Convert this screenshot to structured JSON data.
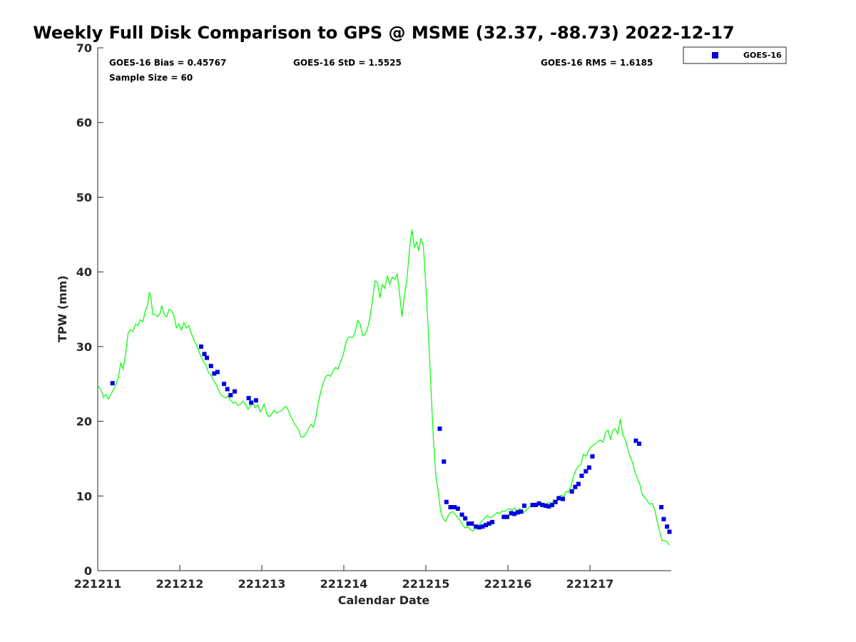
{
  "chart_data": {
    "type": "line",
    "title": "Weekly Full Disk Comparison to GPS @ MSME (32.37, -88.73) 2022-12-17",
    "xlabel": "Calendar Date",
    "ylabel": "TPW (mm)",
    "xlim": [
      0,
      7.0
    ],
    "ylim": [
      0,
      70
    ],
    "x_ticks": [
      {
        "value": 0,
        "label": "221211"
      },
      {
        "value": 1,
        "label": "221212"
      },
      {
        "value": 2,
        "label": "221213"
      },
      {
        "value": 3,
        "label": "221214"
      },
      {
        "value": 4,
        "label": "221215"
      },
      {
        "value": 5,
        "label": "221216"
      },
      {
        "value": 6,
        "label": "221217"
      }
    ],
    "y_ticks": [
      {
        "value": 0,
        "label": "0"
      },
      {
        "value": 10,
        "label": "10"
      },
      {
        "value": 20,
        "label": "20"
      },
      {
        "value": 30,
        "label": "30"
      },
      {
        "value": 40,
        "label": "40"
      },
      {
        "value": 50,
        "label": "50"
      },
      {
        "value": 60,
        "label": "60"
      },
      {
        "value": 70,
        "label": "70"
      }
    ],
    "stats": {
      "bias": "GOES-16 Bias = 0.45767",
      "std": "GOES-16 StD = 1.5525",
      "rms": "GOES-16 RMS = 1.6185",
      "sample": "Sample Size = 60"
    },
    "legend": {
      "position": "top-right",
      "entries": [
        "GOES-16"
      ]
    },
    "series": [
      {
        "name": "GPS",
        "kind": "line",
        "color": "#00ff00",
        "points": [
          [
            0.0,
            24.8
          ],
          [
            0.04,
            24.2
          ],
          [
            0.07,
            23.2
          ],
          [
            0.1,
            23.6
          ],
          [
            0.13,
            23.0
          ],
          [
            0.17,
            23.8
          ],
          [
            0.21,
            24.6
          ],
          [
            0.25,
            25.8
          ],
          [
            0.28,
            27.8
          ],
          [
            0.31,
            27.0
          ],
          [
            0.34,
            29.0
          ],
          [
            0.37,
            31.8
          ],
          [
            0.4,
            32.3
          ],
          [
            0.43,
            32.0
          ],
          [
            0.46,
            33.0
          ],
          [
            0.49,
            32.8
          ],
          [
            0.52,
            33.6
          ],
          [
            0.55,
            33.3
          ],
          [
            0.58,
            34.8
          ],
          [
            0.61,
            35.6
          ],
          [
            0.63,
            37.3
          ],
          [
            0.65,
            36.5
          ],
          [
            0.67,
            34.3
          ],
          [
            0.7,
            34.3
          ],
          [
            0.73,
            34.0
          ],
          [
            0.76,
            34.5
          ],
          [
            0.78,
            35.5
          ],
          [
            0.81,
            34.3
          ],
          [
            0.84,
            34.0
          ],
          [
            0.87,
            35.0
          ],
          [
            0.9,
            34.8
          ],
          [
            0.93,
            34.1
          ],
          [
            0.96,
            32.5
          ],
          [
            0.99,
            33.0
          ],
          [
            1.02,
            32.2
          ],
          [
            1.05,
            33.2
          ],
          [
            1.08,
            32.5
          ],
          [
            1.11,
            32.8
          ],
          [
            1.14,
            31.8
          ],
          [
            1.17,
            31.0
          ],
          [
            1.2,
            30.3
          ],
          [
            1.23,
            29.5
          ],
          [
            1.26,
            28.6
          ],
          [
            1.29,
            28.0
          ],
          [
            1.32,
            27.5
          ],
          [
            1.35,
            26.5
          ],
          [
            1.38,
            26.2
          ],
          [
            1.41,
            25.5
          ],
          [
            1.44,
            25.0
          ],
          [
            1.47,
            24.2
          ],
          [
            1.5,
            23.6
          ],
          [
            1.53,
            23.3
          ],
          [
            1.56,
            23.1
          ],
          [
            1.59,
            23.4
          ],
          [
            1.62,
            22.8
          ],
          [
            1.65,
            22.4
          ],
          [
            1.68,
            22.6
          ],
          [
            1.71,
            22.1
          ],
          [
            1.74,
            22.3
          ],
          [
            1.77,
            22.7
          ],
          [
            1.8,
            22.3
          ],
          [
            1.83,
            21.6
          ],
          [
            1.86,
            22.0
          ],
          [
            1.89,
            22.5
          ],
          [
            1.92,
            21.8
          ],
          [
            1.95,
            22.2
          ],
          [
            1.98,
            21.3
          ],
          [
            2.0,
            21.6
          ],
          [
            2.03,
            22.3
          ],
          [
            2.06,
            21.0
          ],
          [
            2.09,
            20.6
          ],
          [
            2.12,
            21.0
          ],
          [
            2.15,
            21.5
          ],
          [
            2.18,
            21.1
          ],
          [
            2.21,
            21.3
          ],
          [
            2.24,
            21.4
          ],
          [
            2.27,
            21.8
          ],
          [
            2.3,
            22.0
          ],
          [
            2.33,
            21.3
          ],
          [
            2.36,
            20.5
          ],
          [
            2.39,
            19.8
          ],
          [
            2.42,
            19.3
          ],
          [
            2.45,
            18.8
          ],
          [
            2.48,
            17.9
          ],
          [
            2.51,
            17.9
          ],
          [
            2.54,
            18.3
          ],
          [
            2.57,
            19.0
          ],
          [
            2.6,
            19.6
          ],
          [
            2.63,
            19.2
          ],
          [
            2.66,
            20.6
          ],
          [
            2.69,
            22.5
          ],
          [
            2.72,
            24.0
          ],
          [
            2.75,
            25.2
          ],
          [
            2.78,
            26.0
          ],
          [
            2.81,
            26.2
          ],
          [
            2.84,
            26.0
          ],
          [
            2.87,
            26.8
          ],
          [
            2.9,
            27.2
          ],
          [
            2.93,
            27.0
          ],
          [
            2.96,
            28.0
          ],
          [
            2.99,
            28.8
          ],
          [
            3.02,
            30.3
          ],
          [
            3.05,
            31.2
          ],
          [
            3.08,
            31.3
          ],
          [
            3.11,
            31.2
          ],
          [
            3.14,
            32.0
          ],
          [
            3.17,
            33.5
          ],
          [
            3.2,
            33.0
          ],
          [
            3.23,
            31.5
          ],
          [
            3.26,
            31.6
          ],
          [
            3.29,
            32.5
          ],
          [
            3.32,
            34.0
          ],
          [
            3.35,
            36.3
          ],
          [
            3.38,
            38.8
          ],
          [
            3.41,
            38.6
          ],
          [
            3.44,
            36.5
          ],
          [
            3.47,
            38.3
          ],
          [
            3.5,
            37.8
          ],
          [
            3.53,
            39.5
          ],
          [
            3.56,
            38.3
          ],
          [
            3.59,
            39.3
          ],
          [
            3.62,
            39.0
          ],
          [
            3.65,
            39.7
          ],
          [
            3.68,
            37.0
          ],
          [
            3.71,
            34.0
          ],
          [
            3.74,
            37.0
          ],
          [
            3.77,
            39.0
          ],
          [
            3.8,
            43.0
          ],
          [
            3.83,
            45.7
          ],
          [
            3.86,
            43.3
          ],
          [
            3.89,
            44.0
          ],
          [
            3.91,
            42.8
          ],
          [
            3.94,
            44.5
          ],
          [
            3.97,
            43.5
          ],
          [
            4.0,
            38.0
          ],
          [
            4.03,
            32.0
          ],
          [
            4.06,
            25.0
          ],
          [
            4.09,
            18.0
          ],
          [
            4.12,
            13.0
          ],
          [
            4.15,
            10.5
          ],
          [
            4.18,
            8.0
          ],
          [
            4.21,
            7.0
          ],
          [
            4.24,
            6.6
          ],
          [
            4.27,
            7.3
          ],
          [
            4.3,
            7.8
          ],
          [
            4.33,
            7.9
          ],
          [
            4.36,
            7.5
          ],
          [
            4.39,
            7.1
          ],
          [
            4.42,
            6.7
          ],
          [
            4.45,
            6.1
          ],
          [
            4.48,
            5.7
          ],
          [
            4.51,
            5.9
          ],
          [
            4.54,
            5.5
          ],
          [
            4.57,
            5.3
          ],
          [
            4.6,
            5.6
          ],
          [
            4.63,
            5.9
          ],
          [
            4.66,
            6.3
          ],
          [
            4.69,
            6.7
          ],
          [
            4.72,
            7.1
          ],
          [
            4.75,
            7.4
          ],
          [
            4.78,
            7.1
          ],
          [
            4.81,
            7.2
          ],
          [
            4.84,
            7.5
          ],
          [
            4.87,
            7.8
          ],
          [
            4.9,
            7.6
          ],
          [
            4.93,
            8.0
          ],
          [
            4.96,
            7.9
          ],
          [
            4.99,
            8.2
          ],
          [
            5.02,
            8.3
          ],
          [
            5.05,
            8.1
          ],
          [
            5.08,
            8.4
          ],
          [
            5.11,
            8.0
          ],
          [
            5.14,
            8.3
          ],
          [
            5.17,
            8.0
          ],
          [
            5.2,
            7.8
          ],
          [
            5.23,
            8.2
          ],
          [
            5.26,
            8.5
          ],
          [
            5.29,
            8.7
          ],
          [
            5.32,
            9.0
          ],
          [
            5.35,
            8.8
          ],
          [
            5.38,
            9.2
          ],
          [
            5.41,
            8.8
          ],
          [
            5.44,
            9.0
          ],
          [
            5.47,
            8.9
          ],
          [
            5.5,
            9.1
          ],
          [
            5.53,
            9.0
          ],
          [
            5.56,
            9.5
          ],
          [
            5.59,
            9.2
          ],
          [
            5.62,
            9.9
          ],
          [
            5.65,
            10.1
          ],
          [
            5.68,
            9.9
          ],
          [
            5.71,
            10.6
          ],
          [
            5.74,
            10.5
          ],
          [
            5.77,
            11.3
          ],
          [
            5.8,
            12.7
          ],
          [
            5.83,
            13.5
          ],
          [
            5.86,
            14.0
          ],
          [
            5.89,
            14.2
          ],
          [
            5.92,
            15.6
          ],
          [
            5.95,
            15.3
          ],
          [
            5.98,
            16.0
          ],
          [
            6.01,
            16.5
          ],
          [
            6.04,
            16.8
          ],
          [
            6.07,
            17.0
          ],
          [
            6.1,
            17.3
          ],
          [
            6.13,
            17.5
          ],
          [
            6.16,
            17.2
          ],
          [
            6.19,
            18.5
          ],
          [
            6.22,
            18.8
          ],
          [
            6.25,
            17.6
          ],
          [
            6.28,
            18.8
          ],
          [
            6.31,
            19.0
          ],
          [
            6.34,
            18.3
          ],
          [
            6.37,
            20.3
          ],
          [
            6.4,
            18.2
          ],
          [
            6.43,
            17.6
          ],
          [
            6.46,
            16.3
          ],
          [
            6.49,
            15.2
          ],
          [
            6.52,
            14.5
          ],
          [
            6.55,
            13.1
          ],
          [
            6.58,
            12.3
          ],
          [
            6.61,
            11.5
          ],
          [
            6.64,
            10.1
          ],
          [
            6.67,
            9.8
          ],
          [
            6.7,
            9.3
          ],
          [
            6.73,
            8.9
          ],
          [
            6.76,
            9.0
          ],
          [
            6.79,
            8.2
          ],
          [
            6.82,
            6.6
          ],
          [
            6.85,
            5.2
          ],
          [
            6.88,
            4.0
          ],
          [
            6.91,
            4.0
          ],
          [
            6.94,
            3.9
          ],
          [
            6.97,
            3.4
          ]
        ]
      },
      {
        "name": "GOES-16",
        "kind": "scatter",
        "color": "#0000dd",
        "points": [
          [
            0.18,
            25.1
          ],
          [
            1.26,
            30.0
          ],
          [
            1.3,
            29.0
          ],
          [
            1.33,
            28.5
          ],
          [
            1.38,
            27.4
          ],
          [
            1.42,
            26.4
          ],
          [
            1.46,
            26.6
          ],
          [
            1.54,
            25.0
          ],
          [
            1.58,
            24.3
          ],
          [
            1.62,
            23.5
          ],
          [
            1.67,
            24.0
          ],
          [
            1.84,
            23.1
          ],
          [
            1.87,
            22.5
          ],
          [
            1.93,
            22.8
          ],
          [
            4.17,
            19.0
          ],
          [
            4.22,
            14.6
          ],
          [
            4.25,
            9.2
          ],
          [
            4.3,
            8.5
          ],
          [
            4.35,
            8.5
          ],
          [
            4.39,
            8.3
          ],
          [
            4.44,
            7.5
          ],
          [
            4.48,
            7.0
          ],
          [
            4.52,
            6.3
          ],
          [
            4.56,
            6.3
          ],
          [
            4.61,
            5.9
          ],
          [
            4.65,
            5.8
          ],
          [
            4.69,
            5.9
          ],
          [
            4.73,
            6.1
          ],
          [
            4.77,
            6.3
          ],
          [
            4.81,
            6.5
          ],
          [
            4.95,
            7.2
          ],
          [
            4.99,
            7.2
          ],
          [
            5.04,
            7.7
          ],
          [
            5.08,
            7.6
          ],
          [
            5.12,
            7.8
          ],
          [
            5.16,
            7.9
          ],
          [
            5.2,
            8.7
          ],
          [
            5.3,
            8.8
          ],
          [
            5.34,
            8.8
          ],
          [
            5.38,
            9.0
          ],
          [
            5.42,
            8.8
          ],
          [
            5.46,
            8.7
          ],
          [
            5.5,
            8.6
          ],
          [
            5.54,
            8.8
          ],
          [
            5.58,
            9.2
          ],
          [
            5.62,
            9.7
          ],
          [
            5.67,
            9.6
          ],
          [
            5.78,
            10.6
          ],
          [
            5.82,
            11.2
          ],
          [
            5.86,
            11.6
          ],
          [
            5.9,
            12.7
          ],
          [
            5.95,
            13.3
          ],
          [
            5.99,
            13.8
          ],
          [
            6.03,
            15.3
          ],
          [
            6.56,
            17.4
          ],
          [
            6.6,
            17.0
          ],
          [
            6.87,
            8.5
          ],
          [
            6.9,
            6.9
          ],
          [
            6.94,
            5.9
          ],
          [
            6.97,
            5.2
          ]
        ]
      }
    ]
  }
}
